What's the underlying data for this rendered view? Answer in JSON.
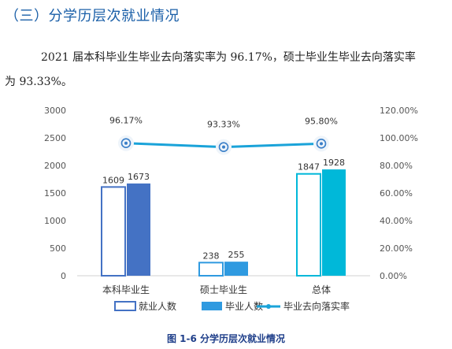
{
  "section_title": "（三）分学历层次就业情况",
  "paragraph": {
    "line1": "2021 届本科毕业生毕业去向落实率为 96.17%，硕士毕业生毕业去向落实率",
    "line2": "为 93.33%。"
  },
  "caption": "图 1-6  分学历层次就业情况",
  "chart_data": {
    "type": "bar",
    "categories": [
      "本科毕业生",
      "硕士毕业生",
      "总体"
    ],
    "series": [
      {
        "name": "就业人数",
        "type": "bar",
        "values": [
          1609,
          238,
          1847
        ],
        "color": "#2e6fc4",
        "style": "outline"
      },
      {
        "name": "毕业人数",
        "type": "bar",
        "values": [
          1673,
          255,
          1928
        ]
      },
      {
        "name": "毕业去向落实率",
        "type": "line",
        "axis": "right",
        "values": [
          96.17,
          93.33,
          95.8
        ],
        "labels": [
          "96.17%",
          "93.33%",
          "95.80%"
        ],
        "color": "#1aa3d9"
      }
    ],
    "bar_colors": [
      "#4472c4",
      "#2f9ae0",
      "#00b8d9"
    ],
    "y_left": {
      "ylim": [
        0,
        3000
      ],
      "ticks": [
        "0",
        "500",
        "1000",
        "1500",
        "2000",
        "2500",
        "3000"
      ]
    },
    "y_right": {
      "ylim": [
        0,
        120
      ],
      "ticks": [
        "0.00%",
        "20.00%",
        "40.00%",
        "60.00%",
        "80.00%",
        "100.00%",
        "120.00%"
      ]
    },
    "grid": false,
    "legend_position": "bottom"
  }
}
